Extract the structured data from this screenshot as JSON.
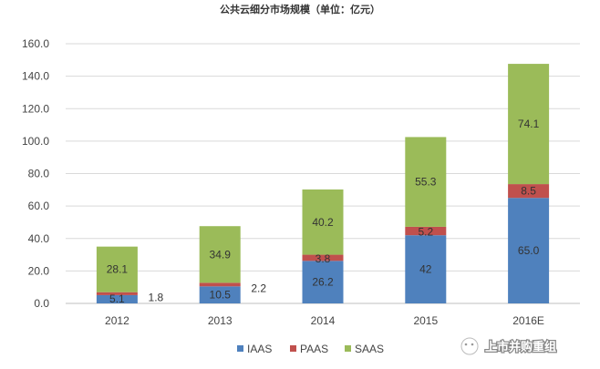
{
  "chart_data": {
    "type": "bar",
    "stacked": true,
    "title": "公共云细分市场规模（单位：亿元）",
    "categories": [
      "2012",
      "2013",
      "2014",
      "2015",
      "2016E"
    ],
    "series": [
      {
        "name": "IAAS",
        "color": "#4F81BD",
        "values": [
          5.1,
          10.5,
          26.2,
          42,
          65.0
        ],
        "labels": [
          "5.1",
          "10.5",
          "26.2",
          "42",
          "65.0"
        ]
      },
      {
        "name": "PAAS",
        "color": "#C0504D",
        "values": [
          1.8,
          2.2,
          3.8,
          5.2,
          8.5
        ],
        "labels": [
          "1.8",
          "2.2",
          "3.8",
          "5.2",
          "8.5"
        ]
      },
      {
        "name": "SAAS",
        "color": "#9BBB59",
        "values": [
          28.1,
          34.9,
          40.2,
          55.3,
          74.1
        ],
        "labels": [
          "28.1",
          "34.9",
          "40.2",
          "55.3",
          "74.1"
        ]
      }
    ],
    "yticks": [
      "0.0",
      "20.0",
      "40.0",
      "60.0",
      "80.0",
      "100.0",
      "120.0",
      "140.0",
      "160.0"
    ],
    "ylim": [
      0,
      160
    ],
    "grid": true,
    "legend": "bottom"
  },
  "watermark": {
    "text": "上市并购重组",
    "icon": "wechat-icon"
  }
}
